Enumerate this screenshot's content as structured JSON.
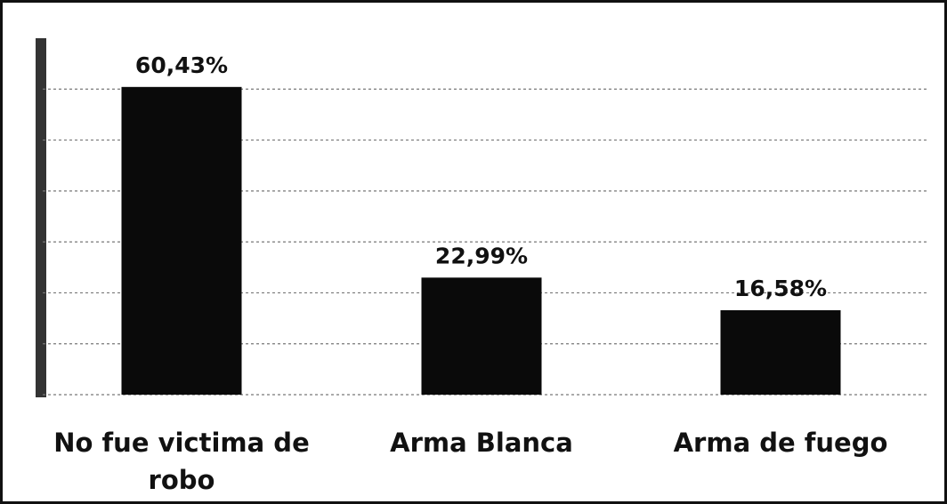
{
  "chart_data": {
    "type": "bar",
    "categories": [
      "No fue victima de robo",
      "Arma Blanca",
      "Arma de fuego"
    ],
    "values": [
      60.43,
      22.99,
      16.58
    ],
    "value_labels": [
      "60,43%",
      "22,99%",
      "16,58%"
    ],
    "color": "#0a0a0a",
    "ylim": [
      0,
      70
    ],
    "yticks": [
      0,
      10,
      20,
      30,
      40,
      50,
      60
    ],
    "grid": true
  }
}
